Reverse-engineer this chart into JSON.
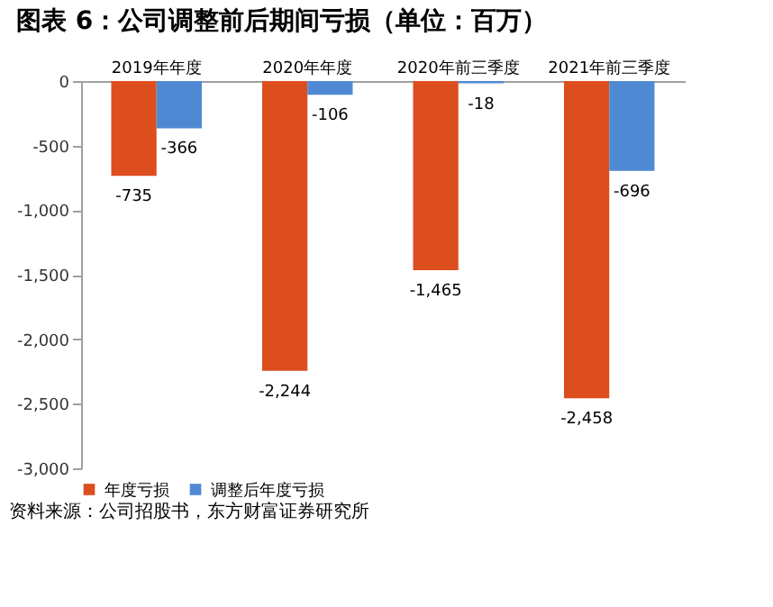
{
  "chart_data": {
    "type": "bar",
    "title": "图表 6：公司调整前后期间亏损（单位：百万）",
    "categories": [
      "2019年年度",
      "2020年年度",
      "2020年前三季度",
      "2021年前三季度"
    ],
    "series": [
      {
        "name": "年度亏损",
        "color": "#dd4e1f",
        "values": [
          -735,
          -2244,
          -1465,
          -2458
        ]
      },
      {
        "name": "调整后年度亏损",
        "color": "#5089d3",
        "values": [
          -366,
          -106,
          -18,
          -696
        ]
      }
    ],
    "ylim": [
      -3000,
      0
    ],
    "yticks": [
      {
        "value": -3000,
        "label": "-3,000"
      },
      {
        "value": -2500,
        "label": "-2,500"
      },
      {
        "value": -2000,
        "label": "-2,000"
      },
      {
        "value": -1500,
        "label": "-1,500"
      },
      {
        "value": -1000,
        "label": "-1,000"
      },
      {
        "value": -500,
        "label": "-500"
      },
      0
    ],
    "value_labels": [
      [
        "-735",
        "-2,244",
        "-1,465",
        "-2,458"
      ],
      [
        "-366",
        "-106",
        "-18",
        "-696"
      ]
    ],
    "grid": false,
    "legend": "bottom",
    "annotations": [
      "资料来源：公司招股书，东方财富证券研究所"
    ]
  }
}
